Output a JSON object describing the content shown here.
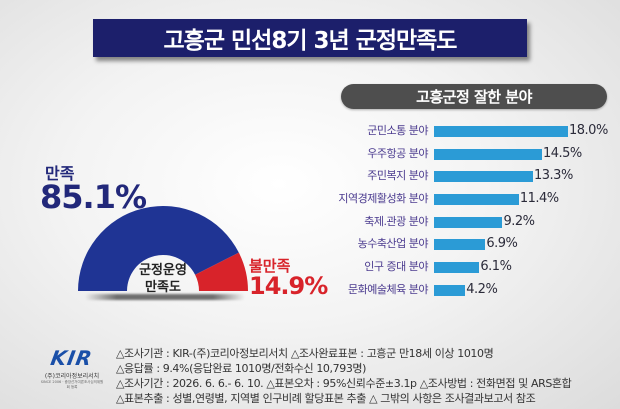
{
  "header": {
    "title": "고흥군 민선8기 3년 군정만족도"
  },
  "gauge": {
    "center_line1": "군정운영",
    "center_line2": "만족도",
    "satisfied_label": "만족",
    "satisfied_value": "85.1%",
    "dissatisfied_label": "불만족",
    "dissatisfied_value": "14.9%",
    "colors": {
      "satisfied": "#1f3494",
      "dissatisfied": "#d8232a"
    }
  },
  "bars_section": {
    "title": "고흥군정 잘한 분야",
    "bar_color": "#2b9bd6",
    "label_color": "#4b3b8f"
  },
  "chart_data": [
    {
      "type": "pie",
      "title": "군정운영 만족도",
      "categories": [
        "만족",
        "불만족"
      ],
      "values": [
        85.1,
        14.9
      ],
      "colors": [
        "#1f3494",
        "#d8232a"
      ],
      "shape": "half-donut"
    },
    {
      "type": "bar",
      "orientation": "horizontal",
      "title": "고흥군정 잘한 분야",
      "categories": [
        "군민소통 분야",
        "우주항공 분야",
        "주민복지 분야",
        "지역경제활성화 분야",
        "축제.관광 분야",
        "농수축산업 분야",
        "인구 증대 분야",
        "문화예술체육 분야"
      ],
      "values": [
        18.0,
        14.5,
        13.3,
        11.4,
        9.2,
        6.9,
        6.1,
        4.2
      ],
      "value_labels": [
        "18.0%",
        "14.5%",
        "13.3%",
        "11.4%",
        "9.2%",
        "6.9%",
        "6.1%",
        "4.2%"
      ],
      "xlabel": "",
      "ylabel": "",
      "grid": false
    }
  ],
  "logo": {
    "mark": "KIR",
    "name": "(주)코리아정보리서치",
    "sub": "SINCE 2006 · 중앙선거여론조사심의위원회 등록"
  },
  "notes": [
    "△조사기관 : KIR-(주)코리아정보리서치 △조사완료표본 : 고흥군 만18세 이상 1010명",
    "△응답률 : 9.4%(응답완료 1010명/전화수신 10,793명)",
    "△조사기간 : 2026. 6. 6.- 6. 10. △표본오차 : 95%신뢰수준±3.1p  △조사방법 :  전화면접 및 ARS혼합",
    "△표본추출 : 성별,연령별, 지역별 인구비례 할당표본 추출 △ 그밖의 사항은 조사결과보고서 참조"
  ]
}
